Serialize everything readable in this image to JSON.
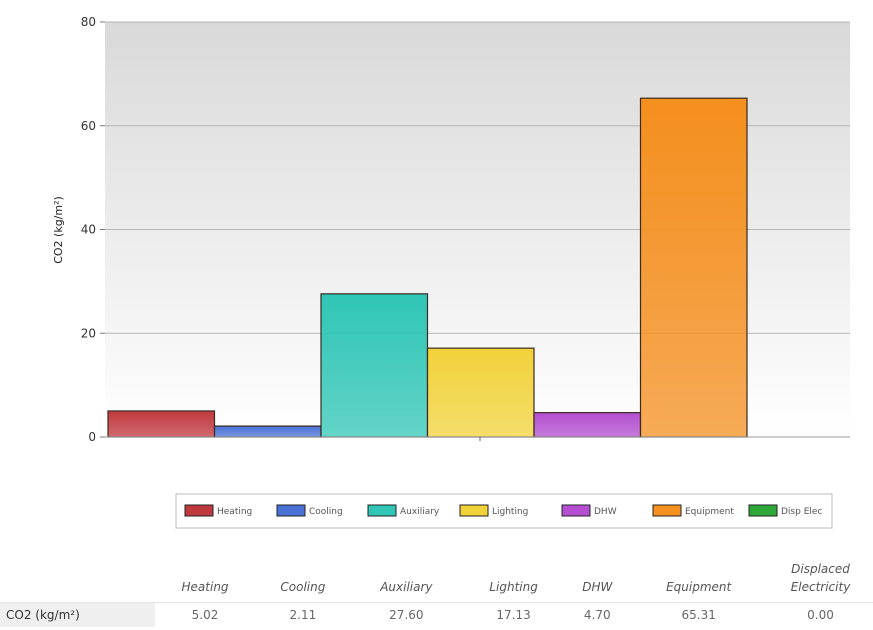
{
  "chart_data": {
    "type": "bar",
    "ylabel": "CO2 (kg/m²)",
    "ylim": [
      0,
      80
    ],
    "yticks": [
      0,
      20,
      40,
      60,
      80
    ],
    "grid": true,
    "legend_position": "bottom",
    "series": [
      {
        "name": "Heating",
        "value": 5.02,
        "color": "#c0393e"
      },
      {
        "name": "Cooling",
        "value": 2.11,
        "color": "#4a72d6"
      },
      {
        "name": "Auxiliary",
        "value": 27.6,
        "color": "#2fc6b6"
      },
      {
        "name": "Lighting",
        "value": 17.13,
        "color": "#f2d23a"
      },
      {
        "name": "DHW",
        "value": 4.7,
        "color": "#b34fd0"
      },
      {
        "name": "Equipment",
        "value": 65.31,
        "color": "#f58f1e"
      },
      {
        "name": "Disp Elec",
        "value": 0.0,
        "color": "#2fa83a"
      }
    ]
  },
  "table": {
    "columns": [
      "Heating",
      "Cooling",
      "Auxiliary",
      "Lighting",
      "DHW",
      "Equipment",
      "Displaced Electricity"
    ],
    "row_label": "CO2 (kg/m²)",
    "values": [
      "5.02",
      "2.11",
      "27.60",
      "17.13",
      "4.70",
      "65.31",
      "0.00"
    ]
  }
}
